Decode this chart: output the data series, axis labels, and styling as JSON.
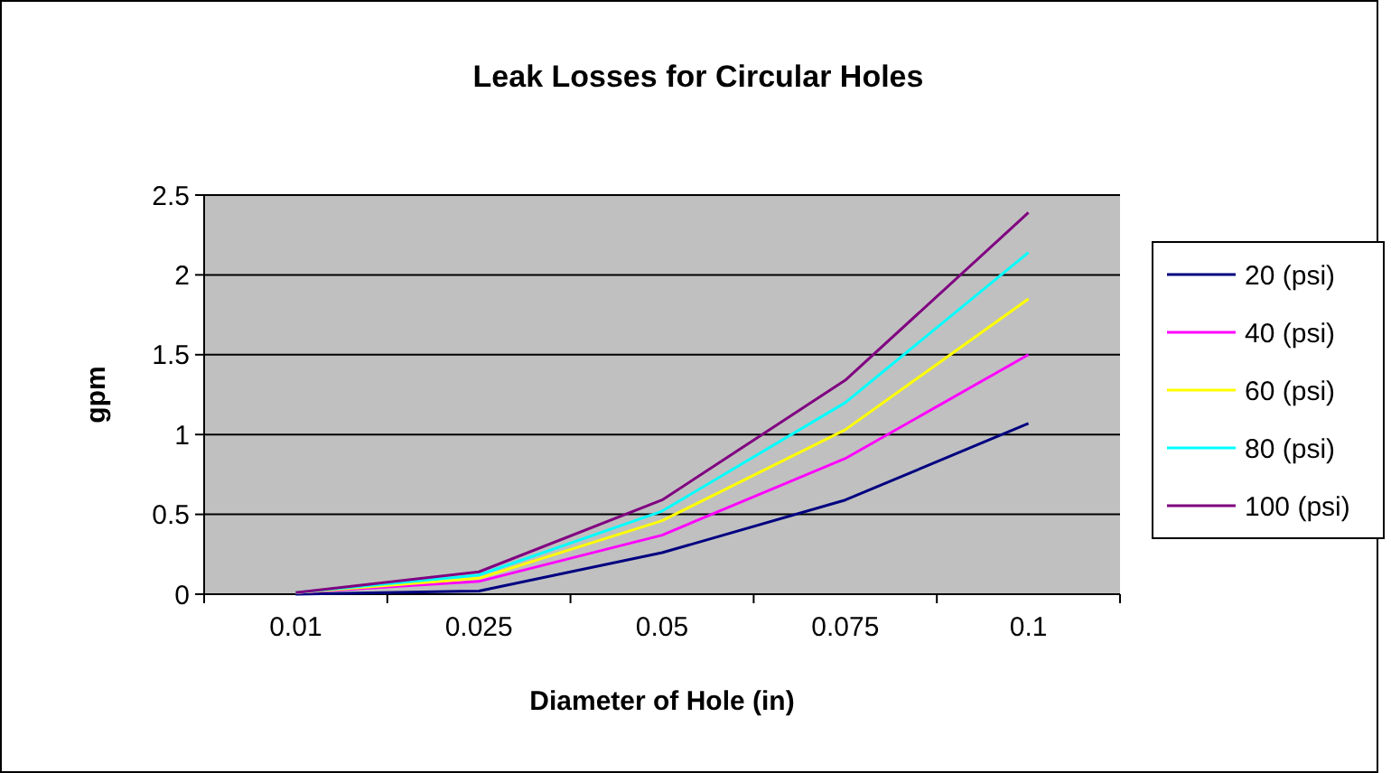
{
  "chart_data": {
    "type": "line",
    "title": "Leak Losses for Circular Holes",
    "xlabel": "Diameter of Hole (in)",
    "ylabel": "gpm",
    "categories": [
      "0.01",
      "0.025",
      "0.05",
      "0.075",
      "0.1"
    ],
    "series": [
      {
        "name": "20 (psi)",
        "color": "#000080",
        "values": [
          0,
          0.02,
          0.26,
          0.59,
          1.07
        ]
      },
      {
        "name": "40 (psi)",
        "color": "#ff00ff",
        "values": [
          0.01,
          0.08,
          0.37,
          0.85,
          1.5
        ]
      },
      {
        "name": "60 (psi)",
        "color": "#ffff00",
        "values": [
          0.01,
          0.1,
          0.46,
          1.03,
          1.85
        ]
      },
      {
        "name": "80 (psi)",
        "color": "#00ffff",
        "values": [
          0.01,
          0.12,
          0.52,
          1.2,
          2.14
        ]
      },
      {
        "name": "100 (psi)",
        "color": "#800080",
        "values": [
          0.01,
          0.14,
          0.59,
          1.34,
          2.39
        ]
      }
    ],
    "ylim": [
      0,
      2.5
    ],
    "yticks": [
      0,
      0.5,
      1,
      1.5,
      2,
      2.5
    ],
    "grid": "y",
    "legend": "right",
    "marker": "none",
    "line_style": "solid"
  }
}
